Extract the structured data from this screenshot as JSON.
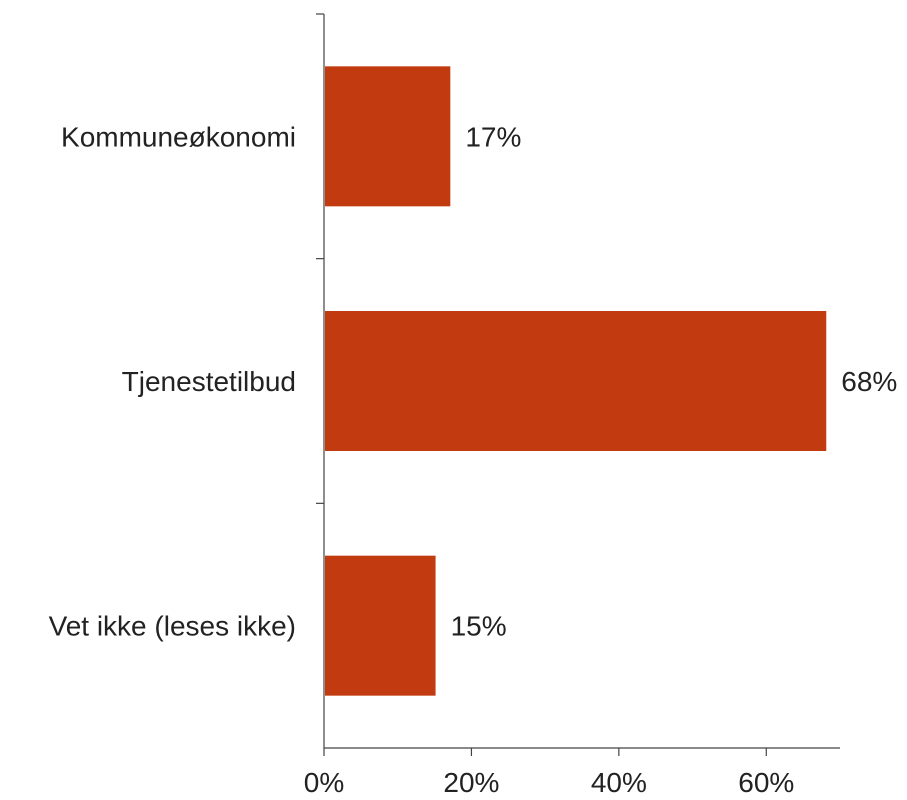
{
  "chart_data": {
    "type": "bar",
    "orientation": "horizontal",
    "categories": [
      "Kommuneøkonomi",
      "Tjenestetilbud",
      "Vet ikke (leses ikke)"
    ],
    "values": [
      17,
      68,
      15
    ],
    "value_labels": [
      "17%",
      "68%",
      "15%"
    ],
    "x_ticks": [
      0,
      20,
      40,
      60
    ],
    "x_tick_labels": [
      "0%",
      "20%",
      "40%",
      "60%"
    ],
    "xlim": [
      0,
      70
    ],
    "grid": false,
    "colors": {
      "bar": "#c23b10"
    }
  }
}
